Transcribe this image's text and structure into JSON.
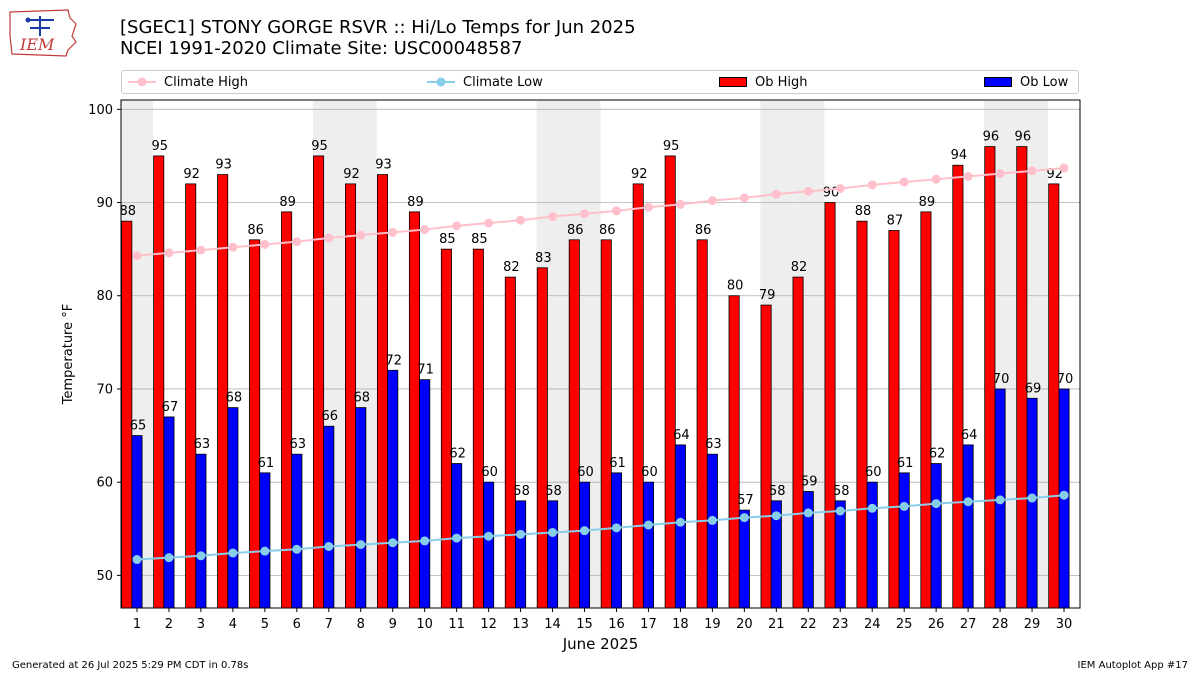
{
  "title_line1": "[SGEC1] STONY GORGE RSVR :: Hi/Lo Temps for Jun 2025",
  "title_line2": "NCEI 1991-2020 Climate Site: USC00048587",
  "logo_text": "IEM",
  "footer_left": "Generated at 26 Jul 2025 5:29 PM CDT in 0.78s",
  "footer_right": "IEM Autoplot App #17",
  "legend": {
    "climate_high": "Climate High",
    "climate_low": "Climate Low",
    "ob_high": "Ob High",
    "ob_low": "Ob Low"
  },
  "colors": {
    "ob_high": "#ff0000",
    "ob_low": "#0000ff",
    "climate_high": "#ffc0cb",
    "climate_low": "#87ceeb",
    "weekend_shade": "#eeeeee",
    "grid": "#b0b0b0"
  },
  "chart_data": {
    "type": "bar",
    "xlabel": "June 2025",
    "ylabel": "Temperature °F",
    "ylim": [
      46.5,
      101
    ],
    "yticks": [
      50,
      60,
      70,
      80,
      90,
      100
    ],
    "grid": true,
    "legend_position": "top",
    "categories": [
      "1",
      "2",
      "3",
      "4",
      "5",
      "6",
      "7",
      "8",
      "9",
      "10",
      "11",
      "12",
      "13",
      "14",
      "15",
      "16",
      "17",
      "18",
      "19",
      "20",
      "21",
      "22",
      "23",
      "24",
      "25",
      "26",
      "27",
      "28",
      "29",
      "30"
    ],
    "weekend_days": [
      "1",
      "7",
      "8",
      "14",
      "15",
      "21",
      "22",
      "28",
      "29"
    ],
    "series": [
      {
        "name": "Ob High",
        "type": "bar",
        "values": [
          88,
          95,
          92,
          93,
          86,
          89,
          95,
          92,
          93,
          89,
          85,
          85,
          82,
          83,
          86,
          86,
          92,
          95,
          86,
          80,
          79,
          82,
          90,
          88,
          87,
          89,
          94,
          96,
          96,
          92
        ]
      },
      {
        "name": "Ob Low",
        "type": "bar",
        "values": [
          65,
          67,
          63,
          68,
          61,
          63,
          66,
          68,
          72,
          71,
          62,
          60,
          58,
          58,
          60,
          61,
          60,
          64,
          63,
          57,
          58,
          59,
          58,
          60,
          61,
          62,
          64,
          70,
          69,
          70
        ]
      },
      {
        "name": "Climate High",
        "type": "line",
        "values": [
          84.3,
          84.6,
          84.9,
          85.2,
          85.5,
          85.8,
          86.2,
          86.5,
          86.8,
          87.1,
          87.5,
          87.8,
          88.1,
          88.5,
          88.8,
          89.1,
          89.5,
          89.8,
          90.2,
          90.5,
          90.9,
          91.2,
          91.5,
          91.9,
          92.2,
          92.5,
          92.8,
          93.1,
          93.4,
          93.7
        ]
      },
      {
        "name": "Climate Low",
        "type": "line",
        "values": [
          51.7,
          51.9,
          52.1,
          52.4,
          52.6,
          52.8,
          53.1,
          53.3,
          53.5,
          53.7,
          54.0,
          54.2,
          54.4,
          54.6,
          54.8,
          55.1,
          55.4,
          55.7,
          55.9,
          56.2,
          56.4,
          56.7,
          56.9,
          57.2,
          57.4,
          57.7,
          57.9,
          58.1,
          58.3,
          58.6
        ]
      }
    ]
  }
}
